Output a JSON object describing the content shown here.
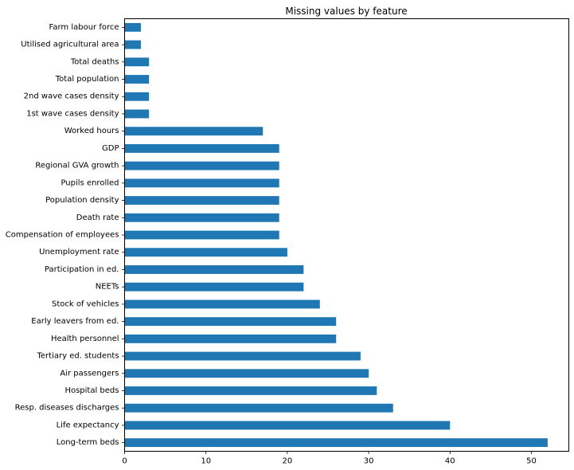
{
  "chart_data": {
    "type": "bar",
    "orientation": "horizontal",
    "title": "Missing values by feature",
    "xlabel": "",
    "ylabel": "",
    "xlim": [
      0,
      54.6
    ],
    "x_ticks": [
      "0",
      "10",
      "20",
      "30",
      "40",
      "50"
    ],
    "grid": false,
    "bar_color": "#1f77b4",
    "categories": [
      "Long-term beds",
      "Life expectancy",
      "Resp. diseases discharges",
      "Hospital beds",
      "Air passengers",
      "Tertiary ed. students",
      "Health personnel",
      "Early leavers from ed.",
      "Stock of vehicles",
      "NEETs",
      "Participation in ed.",
      "Unemployment rate",
      "Compensation of employees",
      "Death rate",
      "Population density",
      "Pupils enrolled",
      "Regional GVA growth",
      "GDP",
      "Worked hours",
      "1st wave cases density",
      "2nd wave cases density",
      "Total population",
      "Total deaths",
      "Utilised agricultural area",
      "Farm labour force"
    ],
    "values": [
      52,
      40,
      33,
      31,
      30,
      29,
      26,
      26,
      24,
      22,
      22,
      20,
      19,
      19,
      19,
      19,
      19,
      19,
      17,
      3,
      3,
      3,
      3,
      2,
      2
    ]
  }
}
